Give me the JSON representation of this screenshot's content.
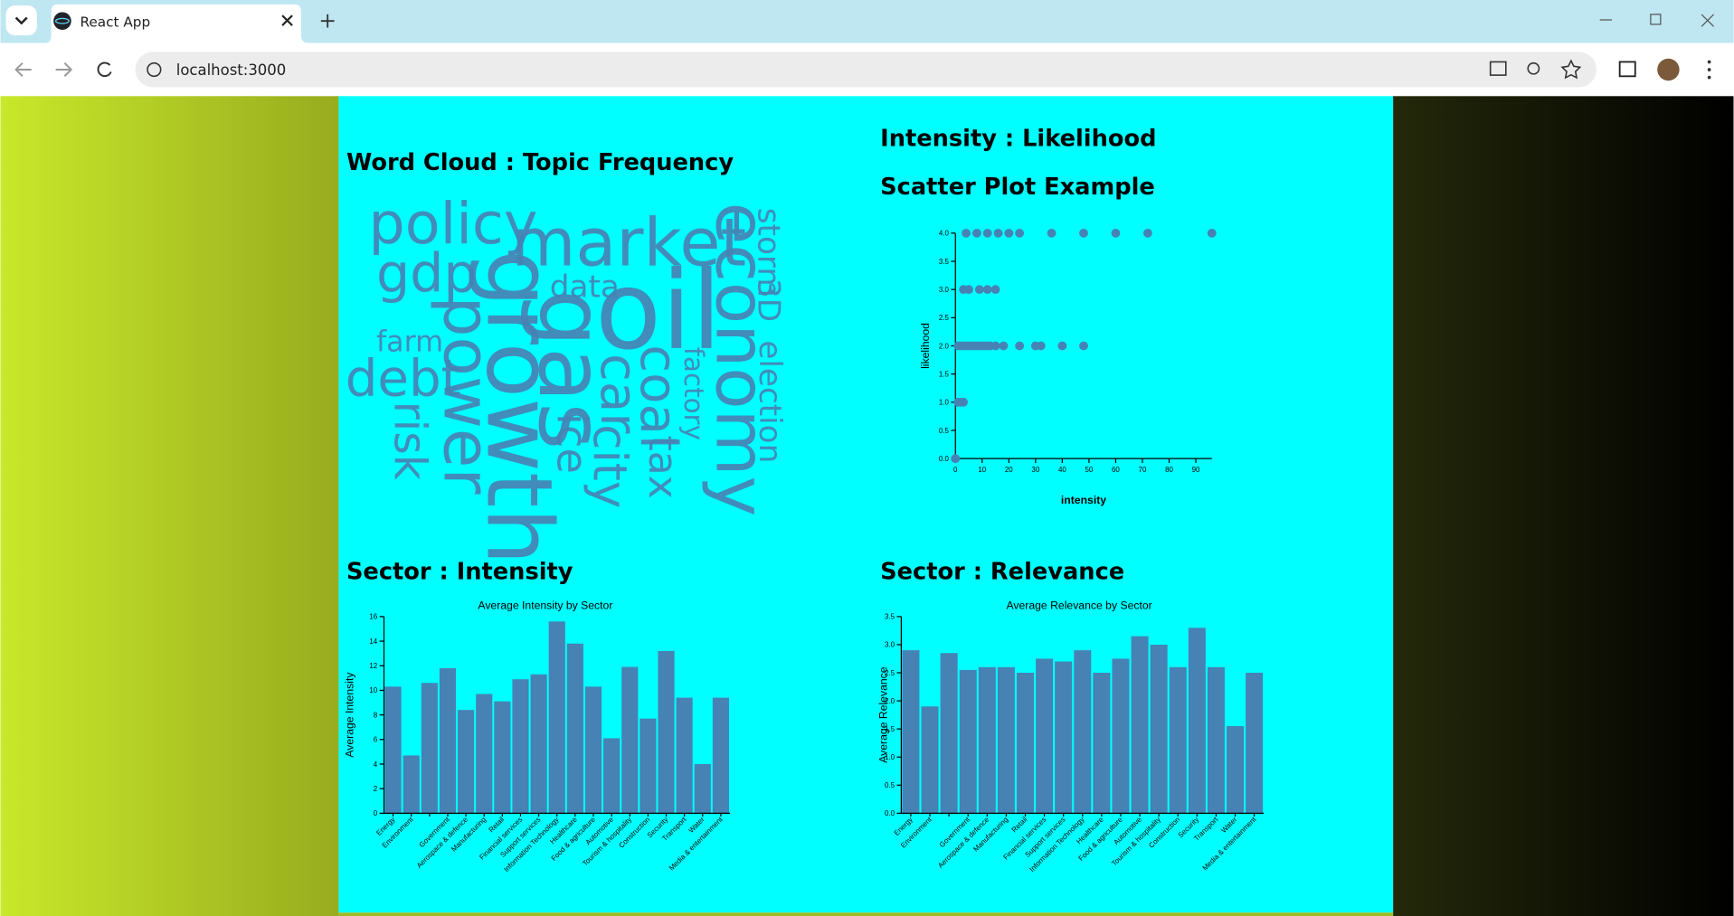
{
  "browser": {
    "tab_title": "React App",
    "url": "localhost:3000"
  },
  "sections": [
    "Word Cloud : Topic Frequency",
    "Intensity : Likelihood",
    "Sector : Intensity",
    "Sector : Relevance"
  ],
  "word_cloud": {
    "words": [
      "policy",
      "market",
      "economy",
      "gdp",
      "growth",
      "oil",
      "gas",
      "data",
      "storm",
      "3D",
      "election",
      "farm",
      "debt",
      "power",
      "car",
      "city",
      "coal",
      "factory",
      "tax",
      "risk",
      "ice"
    ]
  },
  "chart_data": [
    {
      "type": "scatter",
      "title": "Scatter Plot Example",
      "x_label": "intensity",
      "y_label": "likelihood",
      "x": [
        4,
        8,
        12,
        16,
        20,
        24,
        36,
        48,
        60,
        72,
        96,
        3,
        5,
        9,
        12,
        15,
        1,
        2,
        3,
        4,
        5,
        6,
        7,
        8,
        9,
        10,
        11,
        12,
        13,
        15,
        18,
        24,
        30,
        32,
        40,
        48,
        1,
        2,
        3,
        0
      ],
      "values": [
        4,
        4,
        4,
        4,
        4,
        4,
        4,
        4,
        4,
        4,
        4,
        3,
        3,
        3,
        3,
        3,
        2,
        2,
        2,
        2,
        2,
        2,
        2,
        2,
        2,
        2,
        2,
        2,
        2,
        2,
        2,
        2,
        2,
        2,
        2,
        2,
        1,
        1,
        1,
        0
      ],
      "color": "#4682b4",
      "xlim": [
        0,
        96
      ],
      "xticks": [
        0,
        10,
        20,
        30,
        40,
        50,
        60,
        70,
        80,
        90
      ],
      "ylim": [
        0,
        4
      ],
      "yticks": [
        {
          "value": 0,
          "label": "0.0"
        },
        {
          "value": 0.5,
          "label": "0.5"
        },
        {
          "value": 1,
          "label": "1.0"
        },
        {
          "value": 1.5,
          "label": "1.5"
        },
        {
          "value": 2,
          "label": "2.0"
        },
        {
          "value": 2.5,
          "label": "2.5"
        },
        {
          "value": 3,
          "label": "3.0"
        },
        {
          "value": 3.5,
          "label": "3.5"
        },
        {
          "value": 4,
          "label": "4.0"
        }
      ]
    },
    {
      "type": "bar",
      "title": "Average Intensity by Sector",
      "y_label": "Average Intensity",
      "categories": [
        "Energy",
        "Environment",
        null,
        "Government",
        "Aerospace & defence",
        "Manufacturing",
        "Retail",
        "Financial services",
        "Support services",
        "Information Technology",
        "Healthcare",
        "Food & agriculture",
        "Automotive",
        "Tourism & hospitality",
        "Construction",
        "Security",
        "Transport",
        "Water",
        "Media & entertainment"
      ],
      "values": [
        10.3,
        4.7,
        10.6,
        11.8,
        8.4,
        9.7,
        9.1,
        10.9,
        11.3,
        15.6,
        13.8,
        10.3,
        6.1,
        11.9,
        7.7,
        13.2,
        9.4,
        4.0,
        9.4
      ],
      "color": "#4682b4",
      "ylim": [
        0,
        16
      ],
      "yticks": [
        0,
        2,
        4,
        6,
        8,
        10,
        12,
        14,
        16
      ]
    },
    {
      "type": "bar",
      "title": "Average Relevance by Sector",
      "y_label": "Average Relevance",
      "categories": [
        "Energy",
        "Environment",
        null,
        "Government",
        "Aerospace & defence",
        "Manufacturing",
        "Retail",
        "Financial services",
        "Support services",
        "Information Technology",
        "Healthcare",
        "Food & agriculture",
        "Automotive",
        "Tourism & hospitality",
        "Construction",
        "Security",
        "Transport",
        "Water",
        "Media & entertainment"
      ],
      "values": [
        2.9,
        1.9,
        2.85,
        2.55,
        2.6,
        2.6,
        2.5,
        2.75,
        2.7,
        2.9,
        2.5,
        2.75,
        3.15,
        3.0,
        2.6,
        3.3,
        2.6,
        1.55,
        2.5
      ],
      "color": "#4682b4",
      "ylim": [
        0,
        3.5
      ],
      "yticks": [
        {
          "value": 0,
          "label": "0.0"
        },
        {
          "value": 0.5,
          "label": "0.5"
        },
        {
          "value": 1,
          "label": "1.0"
        },
        {
          "value": 1.5,
          "label": "1.5"
        },
        {
          "value": 2,
          "label": "2.0"
        },
        {
          "value": 2.5,
          "label": "2.5"
        },
        {
          "value": 3,
          "label": "3.0"
        },
        {
          "value": 3.5,
          "label": "3.5"
        }
      ]
    }
  ]
}
